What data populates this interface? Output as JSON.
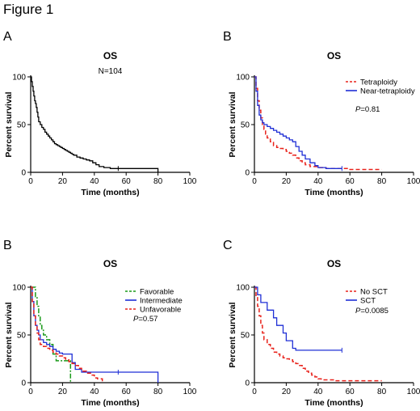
{
  "figure_title": "Figure 1",
  "colors": {
    "black": "#000000",
    "red": "#e8221b",
    "blue": "#1f2fd6",
    "green": "#1a9a1a"
  },
  "chart_data": [
    {
      "type": "line",
      "panel_label": "A",
      "title": "OS",
      "annotation": "N=104",
      "xlabel": "Time (months)",
      "ylabel": "Percent survival",
      "xlim": [
        0,
        100
      ],
      "ylim": [
        0,
        100
      ],
      "xticks": [
        "0",
        "20",
        "40",
        "60",
        "80",
        "100"
      ],
      "yticks": [
        "0",
        "50",
        "100"
      ],
      "pvalue": null,
      "series": [
        {
          "name": "",
          "color": "#000000",
          "dash": "solid",
          "x": [
            0,
            0.5,
            1,
            1.5,
            2,
            2.5,
            3,
            3.5,
            4,
            4.5,
            5,
            6,
            7,
            8,
            9,
            10,
            11,
            12,
            13,
            14,
            15,
            16,
            17,
            18,
            19,
            20,
            21,
            22,
            23,
            24,
            25,
            26,
            27,
            29,
            31,
            33,
            35,
            37,
            39,
            41,
            43,
            46,
            50,
            55,
            58,
            62,
            66,
            70,
            74,
            78,
            80
          ],
          "y": [
            100,
            95,
            90,
            85,
            80,
            75,
            72,
            68,
            63,
            58,
            53,
            50,
            47,
            45,
            42,
            40,
            38,
            36,
            34,
            32,
            30,
            29,
            28,
            27,
            26,
            25,
            24,
            23,
            22,
            21,
            20,
            19,
            18,
            16,
            15,
            14,
            13,
            12,
            10,
            8,
            6,
            5,
            4,
            4,
            4,
            4,
            4,
            4,
            4,
            4,
            0
          ],
          "censor": [
            55
          ]
        }
      ]
    },
    {
      "type": "line",
      "panel_label": "B",
      "title": "OS",
      "annotation": "",
      "xlabel": "Time (months)",
      "ylabel": "Percent survival",
      "xlim": [
        0,
        100
      ],
      "ylim": [
        0,
        100
      ],
      "xticks": [
        "0",
        "20",
        "40",
        "60",
        "80",
        "100"
      ],
      "yticks": [
        "0",
        "50",
        "100"
      ],
      "pvalue": "=0.81",
      "legend_position": "top-right",
      "series": [
        {
          "name": "Tetraploidy",
          "color": "#e8221b",
          "dash": "dash",
          "x": [
            0,
            1,
            2,
            3,
            4,
            5,
            6,
            7,
            8,
            10,
            12,
            14,
            16,
            18,
            20,
            22,
            24,
            26,
            28,
            30,
            32,
            35,
            40,
            45,
            50,
            60,
            70,
            80
          ],
          "y": [
            100,
            88,
            75,
            65,
            57,
            50,
            45,
            40,
            36,
            32,
            28,
            26,
            25,
            24,
            22,
            20,
            18,
            15,
            12,
            10,
            8,
            6,
            5,
            4,
            4,
            3,
            3,
            3
          ],
          "censor": []
        },
        {
          "name": "Near-tetraploidy",
          "color": "#1f2fd6",
          "dash": "solid",
          "x": [
            0,
            1,
            2,
            3,
            4,
            5,
            6,
            8,
            10,
            12,
            14,
            16,
            18,
            20,
            22,
            24,
            26,
            28,
            30,
            32,
            35,
            38,
            40,
            45,
            50,
            55
          ],
          "y": [
            100,
            85,
            70,
            60,
            55,
            52,
            50,
            48,
            46,
            44,
            42,
            40,
            38,
            36,
            34,
            32,
            27,
            22,
            18,
            14,
            10,
            7,
            5,
            4,
            4,
            4
          ],
          "censor": [
            55
          ]
        }
      ]
    },
    {
      "type": "line",
      "panel_label": "B",
      "title": "OS",
      "annotation": "",
      "xlabel": "Time (months)",
      "ylabel": "Percent survival",
      "xlim": [
        0,
        100
      ],
      "ylim": [
        0,
        100
      ],
      "xticks": [
        "0",
        "20",
        "40",
        "60",
        "80",
        "100"
      ],
      "yticks": [
        "0",
        "50",
        "100"
      ],
      "pvalue": "=0.57",
      "legend_position": "top-right",
      "series": [
        {
          "name": "Favorable",
          "color": "#1a9a1a",
          "dash": "dashdot",
          "x": [
            0,
            2,
            3,
            4,
            5,
            6,
            7,
            8,
            10,
            12,
            14,
            16,
            18,
            20,
            22,
            24,
            25
          ],
          "y": [
            100,
            100,
            90,
            80,
            70,
            60,
            55,
            50,
            45,
            40,
            30,
            23,
            23,
            23,
            23,
            23,
            0
          ],
          "censor": []
        },
        {
          "name": "Intermediate",
          "color": "#1f2fd6",
          "dash": "solid",
          "x": [
            0,
            1,
            2,
            3,
            4,
            5,
            6,
            8,
            10,
            12,
            14,
            16,
            18,
            20,
            22,
            24,
            26,
            28,
            30,
            32,
            35,
            40,
            45,
            50,
            55,
            60,
            70,
            80
          ],
          "y": [
            100,
            85,
            70,
            60,
            55,
            50,
            45,
            42,
            40,
            38,
            35,
            33,
            31,
            30,
            30,
            30,
            21,
            14,
            14,
            11,
            11,
            11,
            11,
            11,
            11,
            11,
            11,
            0
          ],
          "censor": [
            55
          ]
        },
        {
          "name": "Unfavorable",
          "color": "#e8221b",
          "dash": "dash",
          "x": [
            0,
            1,
            2,
            3,
            4,
            5,
            6,
            8,
            10,
            12,
            14,
            16,
            18,
            20,
            22,
            24,
            26,
            28,
            30,
            32,
            35,
            38,
            40,
            42,
            45
          ],
          "y": [
            100,
            85,
            70,
            60,
            52,
            45,
            40,
            38,
            36,
            34,
            32,
            30,
            28,
            26,
            24,
            22,
            20,
            18,
            15,
            12,
            10,
            8,
            5,
            4,
            0
          ],
          "censor": []
        }
      ]
    },
    {
      "type": "line",
      "panel_label": "C",
      "title": "OS",
      "annotation": "",
      "xlabel": "Time (months)",
      "ylabel": "Percent survival",
      "xlim": [
        0,
        100
      ],
      "ylim": [
        0,
        100
      ],
      "xticks": [
        "0",
        "20",
        "40",
        "60",
        "80",
        "100"
      ],
      "yticks": [
        "0",
        "50",
        "100"
      ],
      "pvalue": "=0.0085",
      "legend_position": "top-right",
      "series": [
        {
          "name": "No SCT",
          "color": "#e8221b",
          "dash": "dash",
          "x": [
            0,
            1,
            2,
            3,
            4,
            5,
            6,
            8,
            10,
            12,
            14,
            16,
            18,
            20,
            22,
            24,
            26,
            28,
            30,
            32,
            34,
            36,
            38,
            40,
            42,
            45,
            50,
            55,
            60,
            70,
            80
          ],
          "y": [
            100,
            90,
            80,
            70,
            60,
            52,
            45,
            40,
            36,
            32,
            30,
            28,
            26,
            25,
            24,
            22,
            20,
            18,
            15,
            12,
            10,
            8,
            6,
            4,
            3,
            3,
            2,
            2,
            2,
            2,
            2
          ],
          "censor": []
        },
        {
          "name": "SCT",
          "color": "#1f2fd6",
          "dash": "solid",
          "x": [
            0,
            2,
            4,
            6,
            8,
            10,
            12,
            14,
            16,
            18,
            20,
            22,
            24,
            26,
            55
          ],
          "y": [
            100,
            92,
            84,
            84,
            76,
            76,
            68,
            60,
            60,
            52,
            44,
            44,
            36,
            34,
            34
          ],
          "censor": [
            55
          ]
        }
      ]
    }
  ]
}
